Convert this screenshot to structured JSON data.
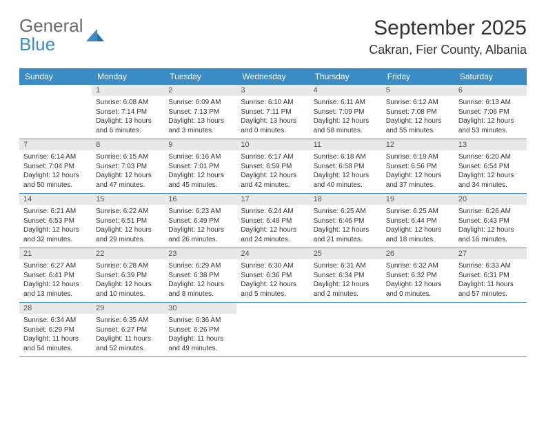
{
  "logo": {
    "line1": "General",
    "line2": "Blue"
  },
  "colors": {
    "header_bg": "#3b8bc4",
    "daynum_bg": "#e8e8e8",
    "text": "#333333",
    "logo_gray": "#6b6b6b",
    "logo_blue": "#3b8bc4",
    "row_border": "#3b8bc4"
  },
  "title": "September 2025",
  "location": "Cakran, Fier County, Albania",
  "day_labels": [
    "Sunday",
    "Monday",
    "Tuesday",
    "Wednesday",
    "Thursday",
    "Friday",
    "Saturday"
  ],
  "weeks": [
    [
      null,
      {
        "n": "1",
        "sunrise": "6:08 AM",
        "sunset": "7:14 PM",
        "daylight": "13 hours and 6 minutes."
      },
      {
        "n": "2",
        "sunrise": "6:09 AM",
        "sunset": "7:13 PM",
        "daylight": "13 hours and 3 minutes."
      },
      {
        "n": "3",
        "sunrise": "6:10 AM",
        "sunset": "7:11 PM",
        "daylight": "13 hours and 0 minutes."
      },
      {
        "n": "4",
        "sunrise": "6:11 AM",
        "sunset": "7:09 PM",
        "daylight": "12 hours and 58 minutes."
      },
      {
        "n": "5",
        "sunrise": "6:12 AM",
        "sunset": "7:08 PM",
        "daylight": "12 hours and 55 minutes."
      },
      {
        "n": "6",
        "sunrise": "6:13 AM",
        "sunset": "7:06 PM",
        "daylight": "12 hours and 53 minutes."
      }
    ],
    [
      {
        "n": "7",
        "sunrise": "6:14 AM",
        "sunset": "7:04 PM",
        "daylight": "12 hours and 50 minutes."
      },
      {
        "n": "8",
        "sunrise": "6:15 AM",
        "sunset": "7:03 PM",
        "daylight": "12 hours and 47 minutes."
      },
      {
        "n": "9",
        "sunrise": "6:16 AM",
        "sunset": "7:01 PM",
        "daylight": "12 hours and 45 minutes."
      },
      {
        "n": "10",
        "sunrise": "6:17 AM",
        "sunset": "6:59 PM",
        "daylight": "12 hours and 42 minutes."
      },
      {
        "n": "11",
        "sunrise": "6:18 AM",
        "sunset": "6:58 PM",
        "daylight": "12 hours and 40 minutes."
      },
      {
        "n": "12",
        "sunrise": "6:19 AM",
        "sunset": "6:56 PM",
        "daylight": "12 hours and 37 minutes."
      },
      {
        "n": "13",
        "sunrise": "6:20 AM",
        "sunset": "6:54 PM",
        "daylight": "12 hours and 34 minutes."
      }
    ],
    [
      {
        "n": "14",
        "sunrise": "6:21 AM",
        "sunset": "6:53 PM",
        "daylight": "12 hours and 32 minutes."
      },
      {
        "n": "15",
        "sunrise": "6:22 AM",
        "sunset": "6:51 PM",
        "daylight": "12 hours and 29 minutes."
      },
      {
        "n": "16",
        "sunrise": "6:23 AM",
        "sunset": "6:49 PM",
        "daylight": "12 hours and 26 minutes."
      },
      {
        "n": "17",
        "sunrise": "6:24 AM",
        "sunset": "6:48 PM",
        "daylight": "12 hours and 24 minutes."
      },
      {
        "n": "18",
        "sunrise": "6:25 AM",
        "sunset": "6:46 PM",
        "daylight": "12 hours and 21 minutes."
      },
      {
        "n": "19",
        "sunrise": "6:25 AM",
        "sunset": "6:44 PM",
        "daylight": "12 hours and 18 minutes."
      },
      {
        "n": "20",
        "sunrise": "6:26 AM",
        "sunset": "6:43 PM",
        "daylight": "12 hours and 16 minutes."
      }
    ],
    [
      {
        "n": "21",
        "sunrise": "6:27 AM",
        "sunset": "6:41 PM",
        "daylight": "12 hours and 13 minutes."
      },
      {
        "n": "22",
        "sunrise": "6:28 AM",
        "sunset": "6:39 PM",
        "daylight": "12 hours and 10 minutes."
      },
      {
        "n": "23",
        "sunrise": "6:29 AM",
        "sunset": "6:38 PM",
        "daylight": "12 hours and 8 minutes."
      },
      {
        "n": "24",
        "sunrise": "6:30 AM",
        "sunset": "6:36 PM",
        "daylight": "12 hours and 5 minutes."
      },
      {
        "n": "25",
        "sunrise": "6:31 AM",
        "sunset": "6:34 PM",
        "daylight": "12 hours and 2 minutes."
      },
      {
        "n": "26",
        "sunrise": "6:32 AM",
        "sunset": "6:32 PM",
        "daylight": "12 hours and 0 minutes."
      },
      {
        "n": "27",
        "sunrise": "6:33 AM",
        "sunset": "6:31 PM",
        "daylight": "11 hours and 57 minutes."
      }
    ],
    [
      {
        "n": "28",
        "sunrise": "6:34 AM",
        "sunset": "6:29 PM",
        "daylight": "11 hours and 54 minutes."
      },
      {
        "n": "29",
        "sunrise": "6:35 AM",
        "sunset": "6:27 PM",
        "daylight": "11 hours and 52 minutes."
      },
      {
        "n": "30",
        "sunrise": "6:36 AM",
        "sunset": "6:26 PM",
        "daylight": "11 hours and 49 minutes."
      },
      null,
      null,
      null,
      null
    ]
  ],
  "labels": {
    "sunrise": "Sunrise: ",
    "sunset": "Sunset: ",
    "daylight": "Daylight: "
  }
}
